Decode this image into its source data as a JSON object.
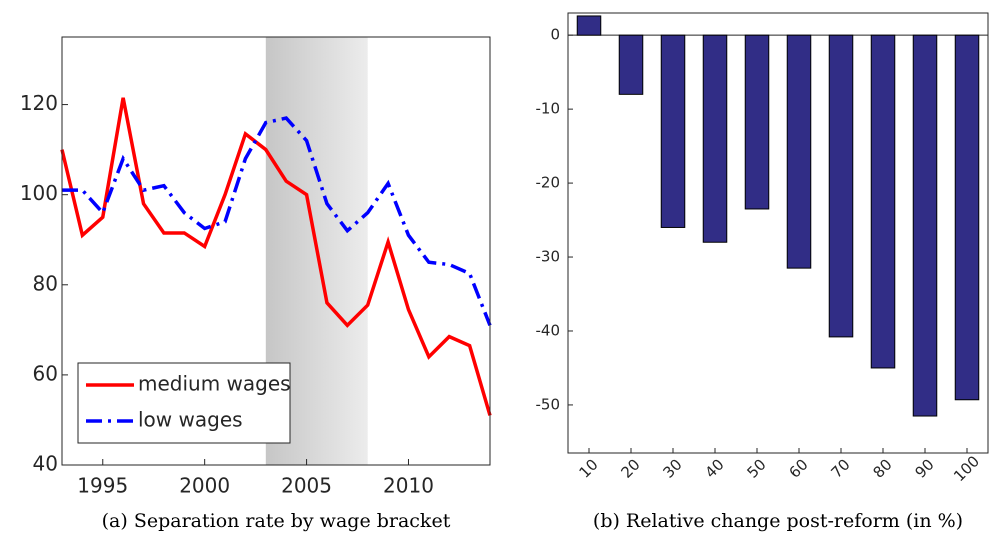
{
  "chart_data": [
    {
      "type": "line",
      "caption": "(a) Separation rate by wage bracket",
      "x": [
        1993,
        1994,
        1995,
        1996,
        1997,
        1998,
        1999,
        2000,
        2001,
        2002,
        2003,
        2004,
        2005,
        2006,
        2007,
        2008,
        2009,
        2010,
        2011,
        2012,
        2013,
        2014
      ],
      "series": [
        {
          "name": "medium wages",
          "color": "#ff0000",
          "dash": "solid",
          "values": [
            110,
            91,
            95,
            121.5,
            98,
            91.5,
            91.5,
            88.5,
            100,
            113.5,
            110,
            103,
            100,
            76,
            71,
            75.5,
            89.5,
            74.5,
            64,
            68.5,
            66.5,
            51
          ]
        },
        {
          "name": "low wages",
          "color": "#0000ff",
          "dash": "dashdot",
          "values": [
            101,
            101,
            96,
            108,
            101,
            102,
            96,
            92.5,
            94,
            108,
            116,
            117,
            112,
            98,
            92,
            96,
            102.5,
            91,
            85,
            84.5,
            82.5,
            71
          ]
        }
      ],
      "shaded_region": [
        2003,
        2008
      ],
      "xlim": [
        1993,
        2014
      ],
      "xticks": [
        1995,
        2000,
        2005,
        2010
      ],
      "ylim": [
        40,
        135
      ],
      "yticks": [
        40,
        60,
        80,
        100,
        120
      ],
      "legend": "lower left"
    },
    {
      "type": "bar",
      "caption": "(b) Relative change post-reform (in %)",
      "categories": [
        "10",
        "20",
        "30",
        "40",
        "50",
        "60",
        "70",
        "80",
        "90",
        "100"
      ],
      "values": [
        2.6,
        -8,
        -26,
        -28,
        -23.5,
        -31.5,
        -40.8,
        -45,
        -51.5,
        -49.3
      ],
      "color": "#312d86",
      "ylim": [
        -56.5,
        3
      ],
      "yticks": [
        -50,
        -40,
        -30,
        -20,
        -10,
        0
      ]
    }
  ]
}
